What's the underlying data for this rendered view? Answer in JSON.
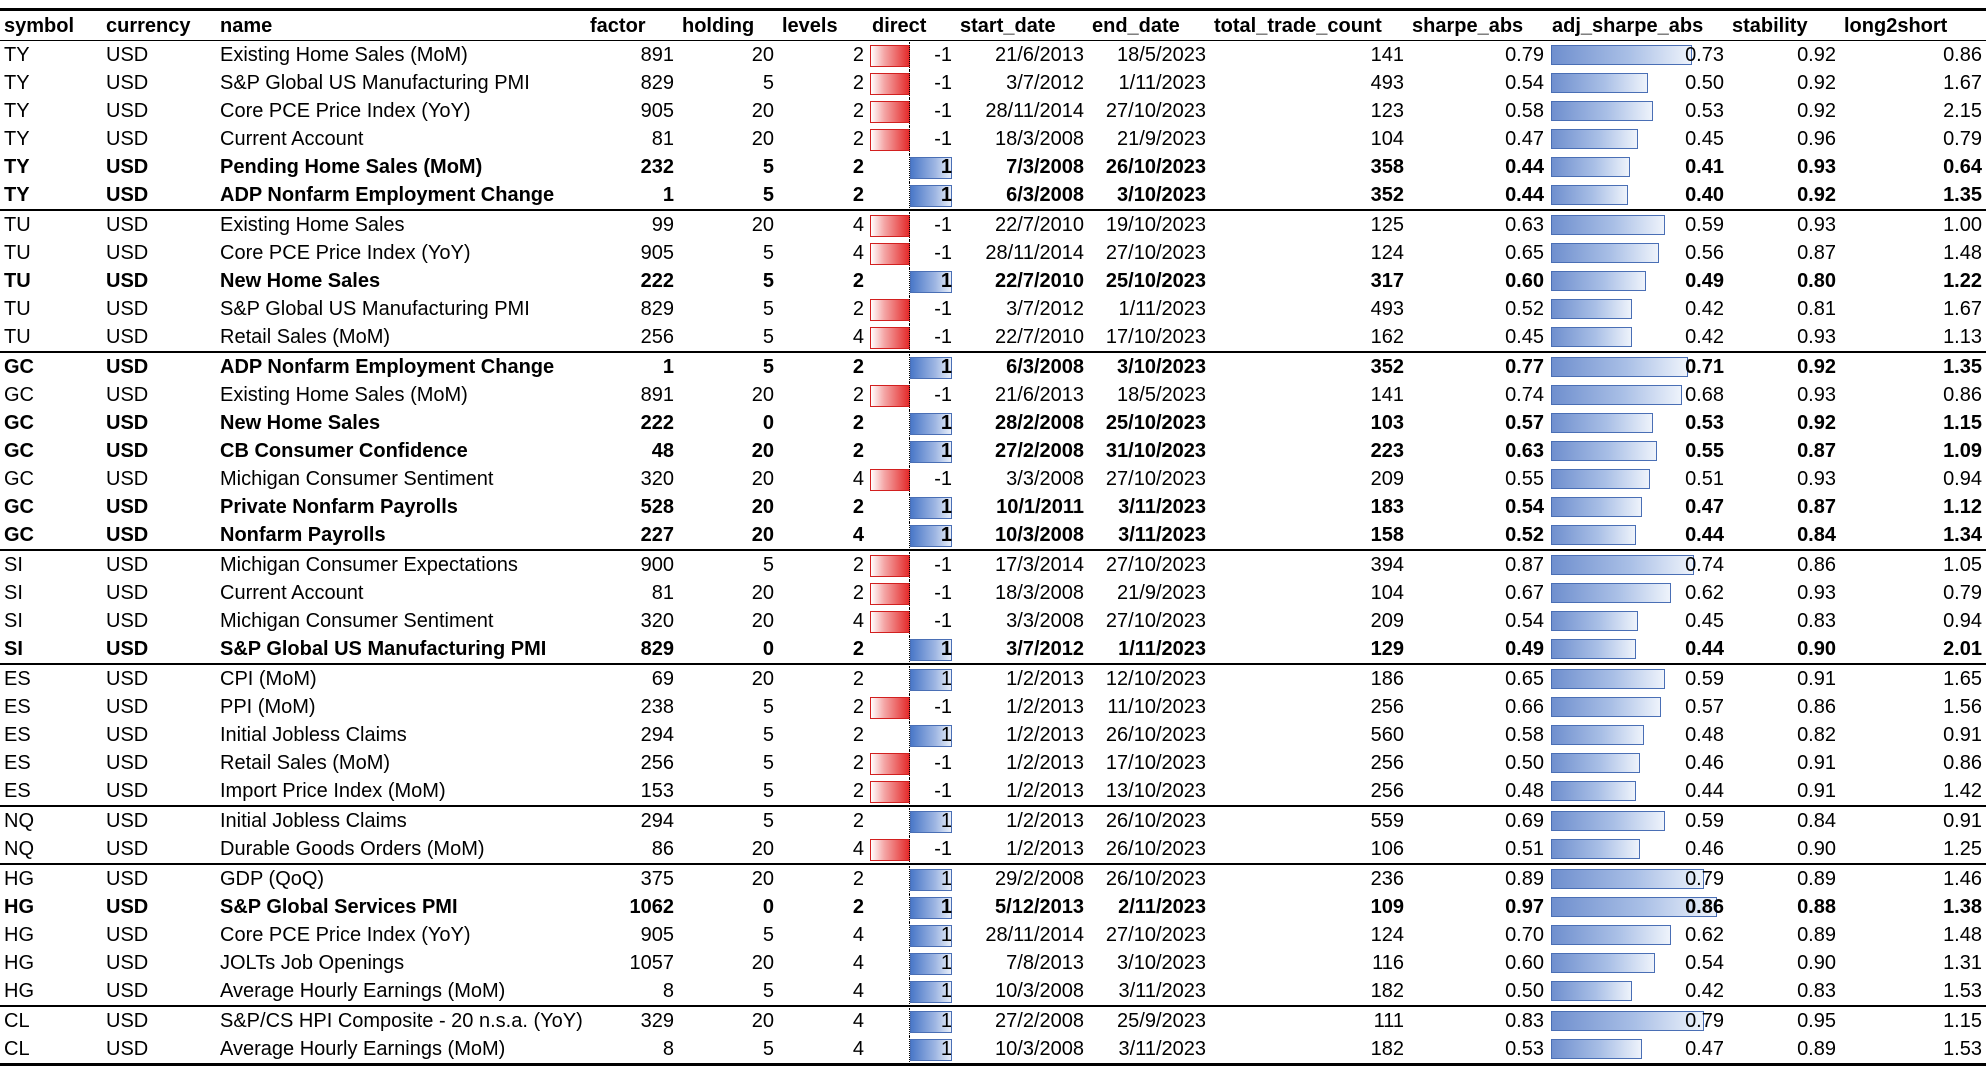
{
  "columns": [
    "symbol",
    "currency",
    "name",
    "factor",
    "holding",
    "levels",
    "direct",
    "start_date",
    "end_date",
    "total_trade_count",
    "sharpe_abs",
    "adj_sharpe_abs",
    "stability",
    "long2short"
  ],
  "rows": [
    {
      "symbol": "TY",
      "currency": "USD",
      "name": "Existing Home Sales (MoM)",
      "factor": "891",
      "holding": "20",
      "levels": "2",
      "direct": "-1",
      "start_date": "21/6/2013",
      "end_date": "18/5/2023",
      "total_trade_count": "141",
      "sharpe_abs": "0.79",
      "adj_sharpe_abs": "0.73",
      "stability": "0.92",
      "long2short": "0.86",
      "bold": false,
      "group_start": false
    },
    {
      "symbol": "TY",
      "currency": "USD",
      "name": "S&P Global US Manufacturing PMI",
      "factor": "829",
      "holding": "5",
      "levels": "2",
      "direct": "-1",
      "start_date": "3/7/2012",
      "end_date": "1/11/2023",
      "total_trade_count": "493",
      "sharpe_abs": "0.54",
      "adj_sharpe_abs": "0.50",
      "stability": "0.92",
      "long2short": "1.67",
      "bold": false,
      "group_start": false
    },
    {
      "symbol": "TY",
      "currency": "USD",
      "name": "Core PCE Price Index (YoY)",
      "factor": "905",
      "holding": "20",
      "levels": "2",
      "direct": "-1",
      "start_date": "28/11/2014",
      "end_date": "27/10/2023",
      "total_trade_count": "123",
      "sharpe_abs": "0.58",
      "adj_sharpe_abs": "0.53",
      "stability": "0.92",
      "long2short": "2.15",
      "bold": false,
      "group_start": false
    },
    {
      "symbol": "TY",
      "currency": "USD",
      "name": "Current Account",
      "factor": "81",
      "holding": "20",
      "levels": "2",
      "direct": "-1",
      "start_date": "18/3/2008",
      "end_date": "21/9/2023",
      "total_trade_count": "104",
      "sharpe_abs": "0.47",
      "adj_sharpe_abs": "0.45",
      "stability": "0.96",
      "long2short": "0.79",
      "bold": false,
      "group_start": false
    },
    {
      "symbol": "TY",
      "currency": "USD",
      "name": "Pending Home Sales (MoM)",
      "factor": "232",
      "holding": "5",
      "levels": "2",
      "direct": "1",
      "start_date": "7/3/2008",
      "end_date": "26/10/2023",
      "total_trade_count": "358",
      "sharpe_abs": "0.44",
      "adj_sharpe_abs": "0.41",
      "stability": "0.93",
      "long2short": "0.64",
      "bold": true,
      "group_start": false
    },
    {
      "symbol": "TY",
      "currency": "USD",
      "name": "ADP Nonfarm Employment Change",
      "factor": "1",
      "holding": "5",
      "levels": "2",
      "direct": "1",
      "start_date": "6/3/2008",
      "end_date": "3/10/2023",
      "total_trade_count": "352",
      "sharpe_abs": "0.44",
      "adj_sharpe_abs": "0.40",
      "stability": "0.92",
      "long2short": "1.35",
      "bold": true,
      "group_start": false
    },
    {
      "symbol": "TU",
      "currency": "USD",
      "name": "Existing Home Sales",
      "factor": "99",
      "holding": "20",
      "levels": "4",
      "direct": "-1",
      "start_date": "22/7/2010",
      "end_date": "19/10/2023",
      "total_trade_count": "125",
      "sharpe_abs": "0.63",
      "adj_sharpe_abs": "0.59",
      "stability": "0.93",
      "long2short": "1.00",
      "bold": false,
      "group_start": true
    },
    {
      "symbol": "TU",
      "currency": "USD",
      "name": "Core PCE Price Index (YoY)",
      "factor": "905",
      "holding": "5",
      "levels": "4",
      "direct": "-1",
      "start_date": "28/11/2014",
      "end_date": "27/10/2023",
      "total_trade_count": "124",
      "sharpe_abs": "0.65",
      "adj_sharpe_abs": "0.56",
      "stability": "0.87",
      "long2short": "1.48",
      "bold": false,
      "group_start": false
    },
    {
      "symbol": "TU",
      "currency": "USD",
      "name": "New Home Sales",
      "factor": "222",
      "holding": "5",
      "levels": "2",
      "direct": "1",
      "start_date": "22/7/2010",
      "end_date": "25/10/2023",
      "total_trade_count": "317",
      "sharpe_abs": "0.60",
      "adj_sharpe_abs": "0.49",
      "stability": "0.80",
      "long2short": "1.22",
      "bold": true,
      "group_start": false
    },
    {
      "symbol": "TU",
      "currency": "USD",
      "name": "S&P Global US Manufacturing PMI",
      "factor": "829",
      "holding": "5",
      "levels": "2",
      "direct": "-1",
      "start_date": "3/7/2012",
      "end_date": "1/11/2023",
      "total_trade_count": "493",
      "sharpe_abs": "0.52",
      "adj_sharpe_abs": "0.42",
      "stability": "0.81",
      "long2short": "1.67",
      "bold": false,
      "group_start": false
    },
    {
      "symbol": "TU",
      "currency": "USD",
      "name": "Retail Sales (MoM)",
      "factor": "256",
      "holding": "5",
      "levels": "4",
      "direct": "-1",
      "start_date": "22/7/2010",
      "end_date": "17/10/2023",
      "total_trade_count": "162",
      "sharpe_abs": "0.45",
      "adj_sharpe_abs": "0.42",
      "stability": "0.93",
      "long2short": "1.13",
      "bold": false,
      "group_start": false
    },
    {
      "symbol": "GC",
      "currency": "USD",
      "name": "ADP Nonfarm Employment Change",
      "factor": "1",
      "holding": "5",
      "levels": "2",
      "direct": "1",
      "start_date": "6/3/2008",
      "end_date": "3/10/2023",
      "total_trade_count": "352",
      "sharpe_abs": "0.77",
      "adj_sharpe_abs": "0.71",
      "stability": "0.92",
      "long2short": "1.35",
      "bold": true,
      "group_start": true
    },
    {
      "symbol": "GC",
      "currency": "USD",
      "name": "Existing Home Sales (MoM)",
      "factor": "891",
      "holding": "20",
      "levels": "2",
      "direct": "-1",
      "start_date": "21/6/2013",
      "end_date": "18/5/2023",
      "total_trade_count": "141",
      "sharpe_abs": "0.74",
      "adj_sharpe_abs": "0.68",
      "stability": "0.93",
      "long2short": "0.86",
      "bold": false,
      "group_start": false
    },
    {
      "symbol": "GC",
      "currency": "USD",
      "name": "New Home Sales",
      "factor": "222",
      "holding": "0",
      "levels": "2",
      "direct": "1",
      "start_date": "28/2/2008",
      "end_date": "25/10/2023",
      "total_trade_count": "103",
      "sharpe_abs": "0.57",
      "adj_sharpe_abs": "0.53",
      "stability": "0.92",
      "long2short": "1.15",
      "bold": true,
      "group_start": false
    },
    {
      "symbol": "GC",
      "currency": "USD",
      "name": "CB Consumer Confidence",
      "factor": "48",
      "holding": "20",
      "levels": "2",
      "direct": "1",
      "start_date": "27/2/2008",
      "end_date": "31/10/2023",
      "total_trade_count": "223",
      "sharpe_abs": "0.63",
      "adj_sharpe_abs": "0.55",
      "stability": "0.87",
      "long2short": "1.09",
      "bold": true,
      "group_start": false
    },
    {
      "symbol": "GC",
      "currency": "USD",
      "name": "Michigan Consumer Sentiment",
      "factor": "320",
      "holding": "20",
      "levels": "4",
      "direct": "-1",
      "start_date": "3/3/2008",
      "end_date": "27/10/2023",
      "total_trade_count": "209",
      "sharpe_abs": "0.55",
      "adj_sharpe_abs": "0.51",
      "stability": "0.93",
      "long2short": "0.94",
      "bold": false,
      "group_start": false
    },
    {
      "symbol": "GC",
      "currency": "USD",
      "name": "Private Nonfarm Payrolls",
      "factor": "528",
      "holding": "20",
      "levels": "2",
      "direct": "1",
      "start_date": "10/1/2011",
      "end_date": "3/11/2023",
      "total_trade_count": "183",
      "sharpe_abs": "0.54",
      "adj_sharpe_abs": "0.47",
      "stability": "0.87",
      "long2short": "1.12",
      "bold": true,
      "group_start": false
    },
    {
      "symbol": "GC",
      "currency": "USD",
      "name": "Nonfarm Payrolls",
      "factor": "227",
      "holding": "20",
      "levels": "4",
      "direct": "1",
      "start_date": "10/3/2008",
      "end_date": "3/11/2023",
      "total_trade_count": "158",
      "sharpe_abs": "0.52",
      "adj_sharpe_abs": "0.44",
      "stability": "0.84",
      "long2short": "1.34",
      "bold": true,
      "group_start": false
    },
    {
      "symbol": "SI",
      "currency": "USD",
      "name": "Michigan Consumer Expectations",
      "factor": "900",
      "holding": "5",
      "levels": "2",
      "direct": "-1",
      "start_date": "17/3/2014",
      "end_date": "27/10/2023",
      "total_trade_count": "394",
      "sharpe_abs": "0.87",
      "adj_sharpe_abs": "0.74",
      "stability": "0.86",
      "long2short": "1.05",
      "bold": false,
      "group_start": true
    },
    {
      "symbol": "SI",
      "currency": "USD",
      "name": "Current Account",
      "factor": "81",
      "holding": "20",
      "levels": "2",
      "direct": "-1",
      "start_date": "18/3/2008",
      "end_date": "21/9/2023",
      "total_trade_count": "104",
      "sharpe_abs": "0.67",
      "adj_sharpe_abs": "0.62",
      "stability": "0.93",
      "long2short": "0.79",
      "bold": false,
      "group_start": false
    },
    {
      "symbol": "SI",
      "currency": "USD",
      "name": "Michigan Consumer Sentiment",
      "factor": "320",
      "holding": "20",
      "levels": "4",
      "direct": "-1",
      "start_date": "3/3/2008",
      "end_date": "27/10/2023",
      "total_trade_count": "209",
      "sharpe_abs": "0.54",
      "adj_sharpe_abs": "0.45",
      "stability": "0.83",
      "long2short": "0.94",
      "bold": false,
      "group_start": false
    },
    {
      "symbol": "SI",
      "currency": "USD",
      "name": "S&P Global US Manufacturing PMI",
      "factor": "829",
      "holding": "0",
      "levels": "2",
      "direct": "1",
      "start_date": "3/7/2012",
      "end_date": "1/11/2023",
      "total_trade_count": "129",
      "sharpe_abs": "0.49",
      "adj_sharpe_abs": "0.44",
      "stability": "0.90",
      "long2short": "2.01",
      "bold": true,
      "group_start": false
    },
    {
      "symbol": "ES",
      "currency": "USD",
      "name": "CPI (MoM)",
      "factor": "69",
      "holding": "20",
      "levels": "2",
      "direct": "1",
      "start_date": "1/2/2013",
      "end_date": "12/10/2023",
      "total_trade_count": "186",
      "sharpe_abs": "0.65",
      "adj_sharpe_abs": "0.59",
      "stability": "0.91",
      "long2short": "1.65",
      "bold": false,
      "group_start": true
    },
    {
      "symbol": "ES",
      "currency": "USD",
      "name": "PPI (MoM)",
      "factor": "238",
      "holding": "5",
      "levels": "2",
      "direct": "-1",
      "start_date": "1/2/2013",
      "end_date": "11/10/2023",
      "total_trade_count": "256",
      "sharpe_abs": "0.66",
      "adj_sharpe_abs": "0.57",
      "stability": "0.86",
      "long2short": "1.56",
      "bold": false,
      "group_start": false
    },
    {
      "symbol": "ES",
      "currency": "USD",
      "name": "Initial Jobless Claims",
      "factor": "294",
      "holding": "5",
      "levels": "2",
      "direct": "1",
      "start_date": "1/2/2013",
      "end_date": "26/10/2023",
      "total_trade_count": "560",
      "sharpe_abs": "0.58",
      "adj_sharpe_abs": "0.48",
      "stability": "0.82",
      "long2short": "0.91",
      "bold": false,
      "group_start": false
    },
    {
      "symbol": "ES",
      "currency": "USD",
      "name": "Retail Sales (MoM)",
      "factor": "256",
      "holding": "5",
      "levels": "2",
      "direct": "-1",
      "start_date": "1/2/2013",
      "end_date": "17/10/2023",
      "total_trade_count": "256",
      "sharpe_abs": "0.50",
      "adj_sharpe_abs": "0.46",
      "stability": "0.91",
      "long2short": "0.86",
      "bold": false,
      "group_start": false
    },
    {
      "symbol": "ES",
      "currency": "USD",
      "name": "Import Price Index (MoM)",
      "factor": "153",
      "holding": "5",
      "levels": "2",
      "direct": "-1",
      "start_date": "1/2/2013",
      "end_date": "13/10/2023",
      "total_trade_count": "256",
      "sharpe_abs": "0.48",
      "adj_sharpe_abs": "0.44",
      "stability": "0.91",
      "long2short": "1.42",
      "bold": false,
      "group_start": false
    },
    {
      "symbol": "NQ",
      "currency": "USD",
      "name": "Initial Jobless Claims",
      "factor": "294",
      "holding": "5",
      "levels": "2",
      "direct": "1",
      "start_date": "1/2/2013",
      "end_date": "26/10/2023",
      "total_trade_count": "559",
      "sharpe_abs": "0.69",
      "adj_sharpe_abs": "0.59",
      "stability": "0.84",
      "long2short": "0.91",
      "bold": false,
      "group_start": true
    },
    {
      "symbol": "NQ",
      "currency": "USD",
      "name": "Durable Goods Orders (MoM)",
      "factor": "86",
      "holding": "20",
      "levels": "4",
      "direct": "-1",
      "start_date": "1/2/2013",
      "end_date": "26/10/2023",
      "total_trade_count": "106",
      "sharpe_abs": "0.51",
      "adj_sharpe_abs": "0.46",
      "stability": "0.90",
      "long2short": "1.25",
      "bold": false,
      "group_start": false
    },
    {
      "symbol": "HG",
      "currency": "USD",
      "name": "GDP (QoQ)",
      "factor": "375",
      "holding": "20",
      "levels": "2",
      "direct": "1",
      "start_date": "29/2/2008",
      "end_date": "26/10/2023",
      "total_trade_count": "236",
      "sharpe_abs": "0.89",
      "adj_sharpe_abs": "0.79",
      "stability": "0.89",
      "long2short": "1.46",
      "bold": false,
      "group_start": true
    },
    {
      "symbol": "HG",
      "currency": "USD",
      "name": "S&P Global Services PMI",
      "factor": "1062",
      "holding": "0",
      "levels": "2",
      "direct": "1",
      "start_date": "5/12/2013",
      "end_date": "2/11/2023",
      "total_trade_count": "109",
      "sharpe_abs": "0.97",
      "adj_sharpe_abs": "0.86",
      "stability": "0.88",
      "long2short": "1.38",
      "bold": true,
      "group_start": false
    },
    {
      "symbol": "HG",
      "currency": "USD",
      "name": "Core PCE Price Index (YoY)",
      "factor": "905",
      "holding": "5",
      "levels": "4",
      "direct": "1",
      "start_date": "28/11/2014",
      "end_date": "27/10/2023",
      "total_trade_count": "124",
      "sharpe_abs": "0.70",
      "adj_sharpe_abs": "0.62",
      "stability": "0.89",
      "long2short": "1.48",
      "bold": false,
      "group_start": false
    },
    {
      "symbol": "HG",
      "currency": "USD",
      "name": "JOLTs Job Openings",
      "factor": "1057",
      "holding": "20",
      "levels": "4",
      "direct": "1",
      "start_date": "7/8/2013",
      "end_date": "3/10/2023",
      "total_trade_count": "116",
      "sharpe_abs": "0.60",
      "adj_sharpe_abs": "0.54",
      "stability": "0.90",
      "long2short": "1.31",
      "bold": false,
      "group_start": false
    },
    {
      "symbol": "HG",
      "currency": "USD",
      "name": "Average Hourly Earnings (MoM)",
      "factor": "8",
      "holding": "5",
      "levels": "4",
      "direct": "1",
      "start_date": "10/3/2008",
      "end_date": "3/11/2023",
      "total_trade_count": "182",
      "sharpe_abs": "0.50",
      "adj_sharpe_abs": "0.42",
      "stability": "0.83",
      "long2short": "1.53",
      "bold": false,
      "group_start": false
    },
    {
      "symbol": "CL",
      "currency": "USD",
      "name": "S&P/CS HPI Composite - 20 n.s.a. (YoY)",
      "factor": "329",
      "holding": "20",
      "levels": "4",
      "direct": "1",
      "start_date": "27/2/2008",
      "end_date": "25/9/2023",
      "total_trade_count": "111",
      "sharpe_abs": "0.83",
      "adj_sharpe_abs": "0.79",
      "stability": "0.95",
      "long2short": "1.15",
      "bold": false,
      "group_start": true
    },
    {
      "symbol": "CL",
      "currency": "USD",
      "name": "Average Hourly Earnings (MoM)",
      "factor": "8",
      "holding": "5",
      "levels": "4",
      "direct": "1",
      "start_date": "10/3/2008",
      "end_date": "3/11/2023",
      "total_trade_count": "182",
      "sharpe_abs": "0.53",
      "adj_sharpe_abs": "0.47",
      "stability": "0.89",
      "long2short": "1.53",
      "bold": false,
      "group_start": false
    }
  ]
}
